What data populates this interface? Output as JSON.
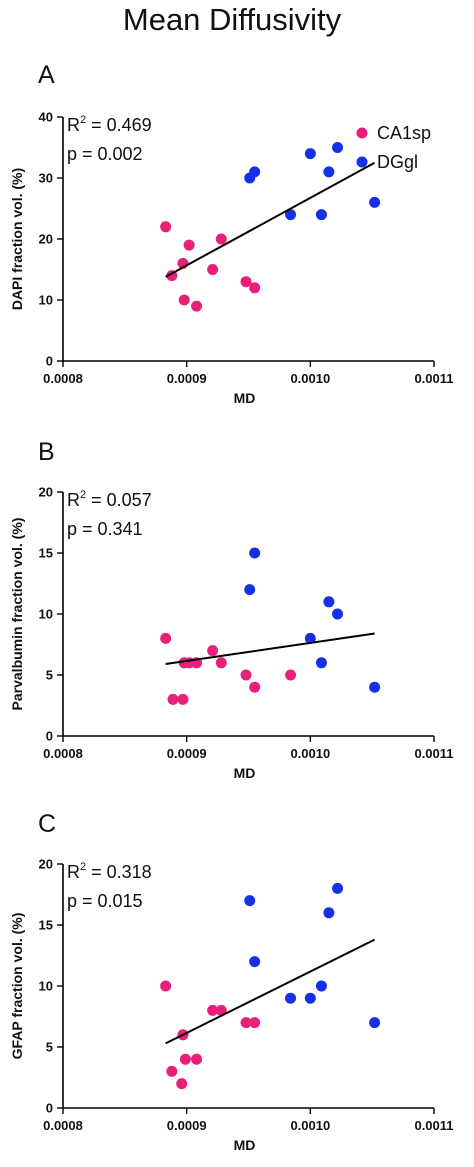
{
  "title": "Mean Diffusivity",
  "colors": {
    "CA1sp": "#e8207a",
    "DGgl": "#1530e8",
    "axis": "#000000"
  },
  "legend": [
    {
      "name": "CA1sp",
      "color": "#e8207a"
    },
    {
      "name": "DGgl",
      "color": "#1530e8"
    }
  ],
  "chart_data": [
    {
      "type": "scatter",
      "panel": "A",
      "xlabel": "MD",
      "ylabel": "DAPI fraction vol. (%)",
      "xlim": [
        0.0008,
        0.0011
      ],
      "ylim": [
        0,
        40
      ],
      "xticks": [
        0.0008,
        0.0009,
        0.001,
        0.0011
      ],
      "xtick_labels": [
        "0.0008",
        "0.0009",
        "0.0010",
        "0.0011"
      ],
      "yticks": [
        0,
        10,
        20,
        30,
        40
      ],
      "ytick_labels": [
        "0",
        "10",
        "20",
        "30",
        "40"
      ],
      "stats": {
        "r2_label": "R",
        "r2_sup": "2",
        "r2_value": " = 0.469",
        "p": "p = 0.002"
      },
      "fit": {
        "x": [
          0.000883,
          0.001052
        ],
        "y": [
          13.8,
          32.5
        ]
      },
      "series": [
        {
          "name": "CA1sp",
          "color": "#e8207a",
          "x": [
            0.000883,
            0.000888,
            0.000897,
            0.000898,
            0.000902,
            0.000908,
            0.000921,
            0.000928,
            0.000948,
            0.000955
          ],
          "y": [
            22,
            14,
            16,
            10,
            19,
            9,
            15,
            20,
            13,
            12
          ]
        },
        {
          "name": "DGgl",
          "color": "#1530e8",
          "x": [
            0.000951,
            0.000955,
            0.000984,
            0.001,
            0.001009,
            0.001015,
            0.001022,
            0.001052
          ],
          "y": [
            30,
            31,
            24,
            34,
            24,
            31,
            35,
            26
          ]
        }
      ]
    },
    {
      "type": "scatter",
      "panel": "B",
      "xlabel": "MD",
      "ylabel": "Parvalbumin fraction vol. (%)",
      "xlim": [
        0.0008,
        0.0011
      ],
      "ylim": [
        0,
        20
      ],
      "xticks": [
        0.0008,
        0.0009,
        0.001,
        0.0011
      ],
      "xtick_labels": [
        "0.0008",
        "0.0009",
        "0.0010",
        "0.0011"
      ],
      "yticks": [
        0,
        5,
        10,
        15,
        20
      ],
      "ytick_labels": [
        "0",
        "5",
        "10",
        "15",
        "20"
      ],
      "stats": {
        "r2_label": "R",
        "r2_sup": "2",
        "r2_value": " = 0.057",
        "p": "p = 0.341"
      },
      "fit": {
        "x": [
          0.000883,
          0.001052
        ],
        "y": [
          5.9,
          8.4
        ]
      },
      "series": [
        {
          "name": "CA1sp",
          "color": "#e8207a",
          "x": [
            0.000883,
            0.000889,
            0.000897,
            0.000898,
            0.000902,
            0.000908,
            0.000921,
            0.000928,
            0.000948,
            0.000955,
            0.000984
          ],
          "y": [
            8,
            3,
            3,
            6,
            6,
            6,
            7,
            6,
            5,
            4,
            5
          ]
        },
        {
          "name": "DGgl",
          "color": "#1530e8",
          "x": [
            0.000951,
            0.000955,
            0.001,
            0.001009,
            0.001015,
            0.001022,
            0.001052
          ],
          "y": [
            12,
            15,
            8,
            6,
            11,
            10,
            4
          ]
        }
      ]
    },
    {
      "type": "scatter",
      "panel": "C",
      "xlabel": "MD",
      "ylabel": "GFAP fraction vol. (%)",
      "xlim": [
        0.0008,
        0.0011
      ],
      "ylim": [
        0,
        20
      ],
      "xticks": [
        0.0008,
        0.0009,
        0.001,
        0.0011
      ],
      "xtick_labels": [
        "0.0008",
        "0.0009",
        "0.0010",
        "0.0011"
      ],
      "yticks": [
        0,
        5,
        10,
        15,
        20
      ],
      "ytick_labels": [
        "0",
        "5",
        "10",
        "15",
        "20"
      ],
      "stats": {
        "r2_label": "R",
        "r2_sup": "2",
        "r2_value": " = 0.318",
        "p": "p = 0.015"
      },
      "fit": {
        "x": [
          0.000883,
          0.001052
        ],
        "y": [
          5.3,
          13.8
        ]
      },
      "series": [
        {
          "name": "CA1sp",
          "color": "#e8207a",
          "x": [
            0.000883,
            0.000888,
            0.000896,
            0.000897,
            0.000899,
            0.000908,
            0.000921,
            0.000928,
            0.000948,
            0.000955
          ],
          "y": [
            10,
            3,
            2,
            6,
            4,
            4,
            8,
            8,
            7,
            7
          ]
        },
        {
          "name": "DGgl",
          "color": "#1530e8",
          "x": [
            0.000951,
            0.000955,
            0.000984,
            0.001,
            0.001009,
            0.001015,
            0.001022,
            0.001052
          ],
          "y": [
            17,
            12,
            9,
            9,
            10,
            16,
            18,
            7
          ]
        }
      ]
    }
  ]
}
